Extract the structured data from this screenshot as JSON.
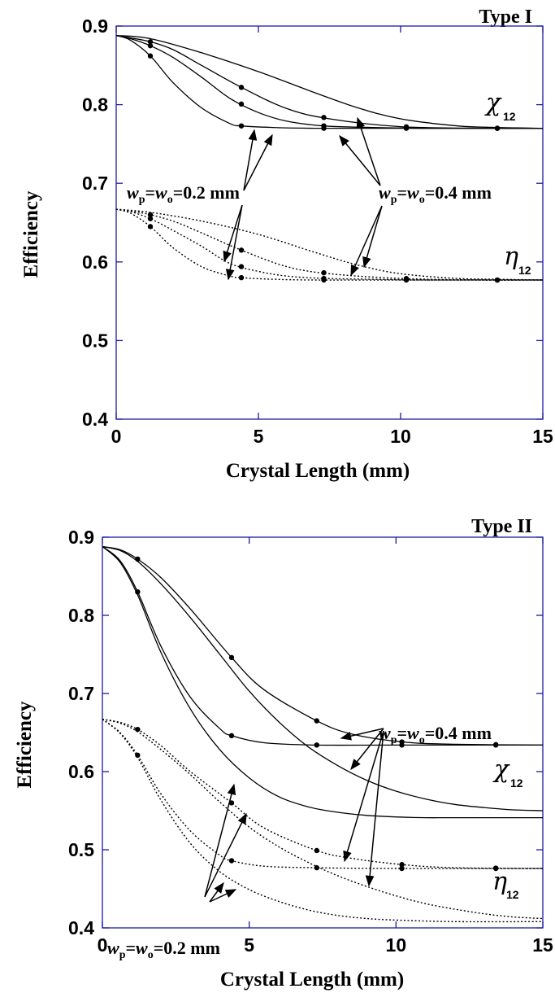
{
  "colors": {
    "frame": "#1a1aa6",
    "curve": "#000000"
  },
  "chart_data": [
    {
      "type": "line",
      "title": "Type I",
      "xlabel": "Crystal Length (mm)",
      "ylabel": "Efficiency",
      "xlim": [
        0,
        15
      ],
      "ylim": [
        0.4,
        0.9
      ],
      "xticks": [
        "0",
        "5",
        "10",
        "15"
      ],
      "yticks": [
        "0.4",
        "0.5",
        "0.6",
        "0.7",
        "0.8",
        "0.9"
      ],
      "labels": {
        "chi": "χ",
        "chi_sub": "12",
        "eta": "η",
        "eta_sub": "12",
        "w_small": {
          "w1": "w",
          "p": "p",
          "eq": "=",
          "w2": "w",
          "o": "o",
          "val": "=0.2 mm"
        },
        "w_large": {
          "w1": "w",
          "p": "p",
          "eq": "=",
          "w2": "w",
          "o": "o",
          "val": "=0.4 mm"
        }
      },
      "series": [
        {
          "group": "chi",
          "style": "solid",
          "x": [
            0,
            0.5,
            1.2,
            2,
            3,
            4.4,
            6,
            7.5,
            10,
            13,
            15
          ],
          "y": [
            0.888,
            0.885,
            0.88,
            0.87,
            0.85,
            0.822,
            0.795,
            0.782,
            0.772,
            0.77,
            0.77
          ],
          "markers": [
            1.2,
            4.4,
            7.3,
            10.2,
            13.4
          ]
        },
        {
          "group": "chi",
          "style": "solid",
          "x": [
            0,
            0.5,
            1.2,
            2,
            3,
            4,
            5,
            6,
            7.3,
            9,
            11,
            15
          ],
          "y": [
            0.888,
            0.884,
            0.875,
            0.86,
            0.835,
            0.808,
            0.79,
            0.779,
            0.773,
            0.771,
            0.77,
            0.77
          ],
          "markers": [
            1.2,
            4.4,
            7.3,
            10.2,
            13.4
          ]
        },
        {
          "group": "chi",
          "style": "solid",
          "x": [
            0,
            0.5,
            1.2,
            2,
            3,
            4,
            4.4,
            5.5,
            7,
            10,
            15
          ],
          "y": [
            0.888,
            0.882,
            0.862,
            0.828,
            0.796,
            0.776,
            0.773,
            0.771,
            0.77,
            0.77,
            0.77
          ],
          "markers": [
            1.2,
            4.4,
            7.3,
            10.2,
            13.4
          ]
        },
        {
          "group": "chi",
          "style": "solid",
          "x": [
            0,
            1.2,
            3,
            5,
            7,
            8.5,
            10,
            12,
            13.4,
            15
          ],
          "y": [
            0.888,
            0.884,
            0.866,
            0.842,
            0.815,
            0.796,
            0.782,
            0.773,
            0.771,
            0.77
          ],
          "markers": []
        },
        {
          "group": "eta",
          "style": "dotted",
          "x": [
            0,
            1.2,
            3,
            5,
            7,
            8.5,
            10,
            12,
            13.4,
            15
          ],
          "y": [
            0.667,
            0.663,
            0.652,
            0.635,
            0.612,
            0.596,
            0.585,
            0.579,
            0.578,
            0.577
          ],
          "markers": []
        },
        {
          "group": "eta",
          "style": "dotted",
          "x": [
            0,
            0.5,
            1.2,
            2,
            3,
            4.4,
            6,
            7.5,
            10,
            13,
            15
          ],
          "y": [
            0.667,
            0.665,
            0.66,
            0.652,
            0.637,
            0.615,
            0.594,
            0.585,
            0.579,
            0.577,
            0.577
          ],
          "markers": [
            1.2,
            4.4,
            7.3,
            10.2,
            13.4
          ]
        },
        {
          "group": "eta",
          "style": "dotted",
          "x": [
            0,
            0.5,
            1.2,
            2,
            3,
            4,
            5,
            6,
            7.3,
            9,
            11,
            15
          ],
          "y": [
            0.667,
            0.664,
            0.655,
            0.64,
            0.62,
            0.598,
            0.588,
            0.582,
            0.579,
            0.578,
            0.577,
            0.577
          ],
          "markers": [
            1.2,
            4.4,
            7.3,
            10.2,
            13.4
          ]
        },
        {
          "group": "eta",
          "style": "dotted",
          "x": [
            0,
            0.5,
            1.2,
            2,
            3,
            4,
            4.4,
            5.5,
            7,
            10,
            15
          ],
          "y": [
            0.667,
            0.662,
            0.645,
            0.618,
            0.594,
            0.582,
            0.58,
            0.578,
            0.577,
            0.577,
            0.577
          ],
          "markers": [
            1.2,
            4.4,
            7.3,
            10.2,
            13.4
          ]
        }
      ]
    },
    {
      "type": "line",
      "title": "Type II",
      "xlabel": "Crystal Length (mm)",
      "ylabel": "Efficiency",
      "xlim": [
        0,
        15
      ],
      "ylim": [
        0.4,
        0.9
      ],
      "xticks": [
        "0",
        "5",
        "10",
        "15"
      ],
      "yticks": [
        "0.4",
        "0.5",
        "0.6",
        "0.7",
        "0.8",
        "0.9"
      ],
      "labels": {
        "chi": "χ",
        "chi_sub": "12",
        "eta": "η",
        "eta_sub": "12",
        "w_small": {
          "w1": "w",
          "p": "p",
          "eq": "=",
          "w2": "w",
          "o": "o",
          "val": "=0.2 mm"
        },
        "w_large": {
          "w1": "w",
          "p": "p",
          "eq": "=",
          "w2": "w",
          "o": "o",
          "val": "=0.4 mm"
        }
      },
      "series": [
        {
          "group": "chi",
          "style": "solid",
          "x": [
            0,
            0.6,
            1.2,
            2,
            3,
            4.4,
            5.5,
            7.3,
            8.5,
            10.2,
            12,
            15
          ],
          "y": [
            0.888,
            0.884,
            0.872,
            0.848,
            0.808,
            0.746,
            0.705,
            0.665,
            0.648,
            0.638,
            0.635,
            0.634
          ],
          "markers": [
            1.2,
            4.4,
            7.3,
            10.2,
            13.4
          ]
        },
        {
          "group": "chi",
          "style": "solid",
          "x": [
            0,
            0.6,
            1.2,
            2,
            3,
            4,
            5,
            6,
            7,
            8,
            9,
            10,
            11,
            12,
            13,
            14,
            15
          ],
          "y": [
            0.888,
            0.883,
            0.869,
            0.84,
            0.797,
            0.75,
            0.703,
            0.664,
            0.632,
            0.608,
            0.589,
            0.575,
            0.565,
            0.558,
            0.554,
            0.551,
            0.55
          ],
          "markers": []
        },
        {
          "group": "chi",
          "style": "solid",
          "x": [
            0,
            0.6,
            1.2,
            2,
            3,
            4,
            4.4,
            5.5,
            7.3,
            10,
            15
          ],
          "y": [
            0.888,
            0.87,
            0.83,
            0.76,
            0.695,
            0.655,
            0.646,
            0.637,
            0.634,
            0.634,
            0.634
          ],
          "markers": [
            1.2,
            4.4,
            7.3,
            10.2,
            13.4
          ]
        },
        {
          "group": "chi",
          "style": "solid",
          "x": [
            0,
            0.6,
            1.2,
            2,
            3,
            4,
            5,
            6,
            7,
            8,
            9,
            10,
            11,
            12,
            15
          ],
          "y": [
            0.888,
            0.868,
            0.826,
            0.752,
            0.68,
            0.628,
            0.592,
            0.568,
            0.555,
            0.548,
            0.544,
            0.542,
            0.541,
            0.541,
            0.541
          ],
          "markers": []
        },
        {
          "group": "eta",
          "style": "dotted",
          "x": [
            0,
            0.6,
            1.2,
            2,
            3,
            4.4,
            5.5,
            7.3,
            8.5,
            10.2,
            12,
            15
          ],
          "y": [
            0.667,
            0.663,
            0.654,
            0.633,
            0.6,
            0.56,
            0.528,
            0.499,
            0.489,
            0.481,
            0.477,
            0.476
          ],
          "markers": [
            1.2,
            4.4,
            7.3,
            10.2,
            13.4
          ]
        },
        {
          "group": "eta",
          "style": "dotted",
          "x": [
            0,
            0.6,
            1.2,
            2,
            3,
            4,
            5,
            6,
            7,
            8,
            9,
            10,
            11,
            12,
            13,
            14,
            15
          ],
          "y": [
            0.667,
            0.662,
            0.651,
            0.628,
            0.596,
            0.561,
            0.529,
            0.504,
            0.484,
            0.467,
            0.453,
            0.441,
            0.431,
            0.424,
            0.418,
            0.414,
            0.412
          ],
          "markers": []
        },
        {
          "group": "eta",
          "style": "dotted",
          "x": [
            0,
            0.6,
            1.2,
            2,
            3,
            4,
            4.4,
            5.5,
            7.3,
            10,
            15
          ],
          "y": [
            0.667,
            0.65,
            0.621,
            0.571,
            0.524,
            0.493,
            0.486,
            0.479,
            0.477,
            0.476,
            0.476
          ],
          "markers": [
            1.2,
            4.4,
            7.3,
            10.2,
            13.4
          ]
        },
        {
          "group": "eta",
          "style": "dotted",
          "x": [
            0,
            0.6,
            1.2,
            2,
            3,
            4,
            5,
            6,
            7,
            8,
            9,
            10,
            12,
            15
          ],
          "y": [
            0.667,
            0.649,
            0.618,
            0.563,
            0.508,
            0.472,
            0.449,
            0.434,
            0.423,
            0.416,
            0.412,
            0.41,
            0.408,
            0.408
          ],
          "markers": []
        }
      ]
    }
  ]
}
